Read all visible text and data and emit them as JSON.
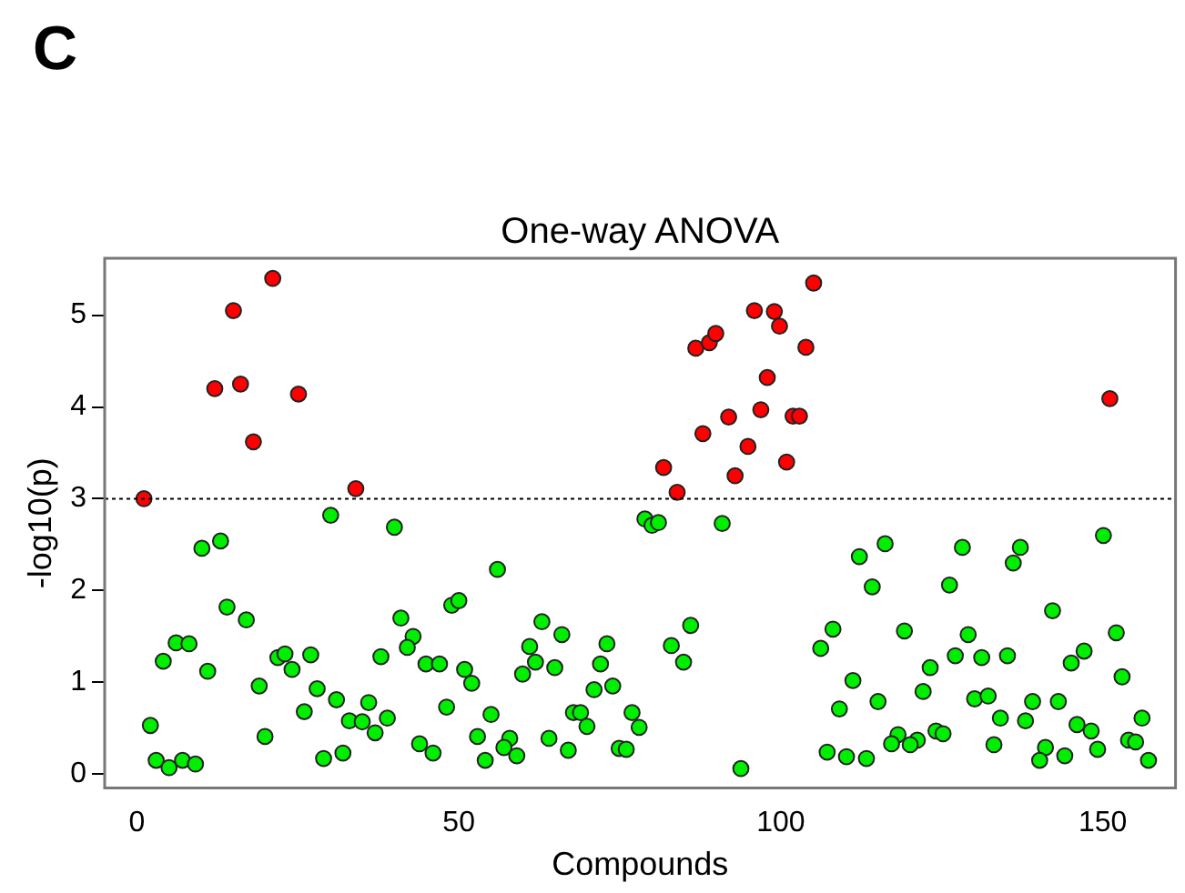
{
  "chart_data": {
    "type": "scatter",
    "title": "One-way ANOVA",
    "xlabel": "Compounds",
    "ylabel": "-log10(p)",
    "annotations": [
      "C"
    ],
    "xlim": [
      -5,
      161.3
    ],
    "xticks": [
      0,
      50,
      100,
      150
    ],
    "ylim": [
      -0.15,
      5.62
    ],
    "yticks": [
      0,
      1,
      2,
      3,
      4,
      5
    ],
    "grid": false,
    "legend": false,
    "marker": "circle",
    "ref_lines": [
      {
        "axis": "y",
        "value": 3,
        "line_style": "dotted",
        "color": "#000000"
      }
    ],
    "series": [
      {
        "color": "#ff0000",
        "x": [
          1.1,
          12.1,
          15.0,
          16.1,
          18.1,
          21.1,
          25.1,
          34.0,
          81.8,
          83.9,
          86.8,
          87.9,
          88.9,
          89.9,
          91.9,
          92.9,
          94.9,
          95.9,
          96.9,
          97.9,
          99.0,
          99.8,
          100.9,
          101.9,
          102.9,
          103.9,
          105.1,
          151.1
        ],
        "values": [
          3.0,
          4.2,
          5.05,
          4.25,
          3.62,
          5.4,
          4.14,
          3.11,
          3.34,
          3.07,
          4.64,
          3.71,
          4.7,
          4.8,
          3.89,
          3.25,
          3.57,
          5.05,
          3.97,
          4.32,
          5.04,
          4.88,
          3.4,
          3.9,
          3.9,
          4.65,
          5.35,
          4.09
        ]
      },
      {
        "color": "#00ee00",
        "x": [
          30.1,
          40.0,
          10.1,
          13.0,
          14.0,
          17.0,
          41.0,
          42.9,
          42.0,
          6.1,
          8.1,
          4.1,
          11.0,
          21.9,
          23.0,
          24.1,
          27.0,
          37.9,
          44.9,
          47.0,
          48.9,
          50.0,
          50.9,
          52.0,
          48.1,
          19.0,
          28.0,
          31.0,
          26.0,
          36.0,
          33.0,
          35.0,
          38.9,
          37.0,
          19.9,
          2.1,
          43.9,
          46.0,
          29.0,
          32.0,
          3.0,
          5.0,
          7.1,
          9.1,
          78.9,
          80.0,
          81.0,
          90.9,
          56.0,
          62.9,
          66.0,
          61.0,
          73.0,
          83.0,
          86.0,
          61.9,
          64.9,
          59.9,
          72.0,
          84.9,
          71.0,
          73.9,
          55.0,
          67.8,
          68.9,
          76.9,
          69.9,
          78.0,
          52.9,
          57.9,
          57.0,
          64.0,
          54.1,
          59.0,
          67.0,
          74.9,
          76.0,
          93.8,
          150.1,
          116.2,
          112.2,
          128.2,
          137.2,
          136.1,
          114.2,
          126.2,
          142.2,
          108.1,
          106.2,
          119.2,
          129.1,
          152.1,
          127.1,
          131.2,
          135.2,
          147.1,
          145.1,
          123.2,
          111.2,
          153.0,
          122.1,
          130.1,
          132.2,
          115.1,
          139.1,
          143.1,
          109.1,
          134.1,
          138.0,
          156.1,
          146.0,
          148.2,
          118.2,
          124.1,
          125.2,
          121.2,
          117.2,
          120.1,
          133.1,
          141.1,
          154.0,
          155.1,
          149.2,
          107.2,
          110.2,
          113.3,
          140.2,
          144.1,
          157.1
        ],
        "values": [
          2.82,
          2.69,
          2.46,
          2.54,
          1.82,
          1.68,
          1.7,
          1.5,
          1.38,
          1.43,
          1.42,
          1.23,
          1.12,
          1.27,
          1.31,
          1.14,
          1.3,
          1.28,
          1.2,
          1.2,
          1.84,
          1.89,
          1.14,
          0.99,
          0.73,
          0.96,
          0.93,
          0.81,
          0.68,
          0.78,
          0.58,
          0.57,
          0.61,
          0.45,
          0.41,
          0.53,
          0.33,
          0.23,
          0.17,
          0.23,
          0.15,
          0.07,
          0.15,
          0.11,
          2.78,
          2.71,
          2.74,
          2.73,
          2.23,
          1.66,
          1.52,
          1.39,
          1.42,
          1.4,
          1.62,
          1.22,
          1.16,
          1.09,
          1.2,
          1.22,
          0.92,
          0.96,
          0.65,
          0.67,
          0.67,
          0.67,
          0.52,
          0.51,
          0.41,
          0.39,
          0.29,
          0.39,
          0.15,
          0.2,
          0.26,
          0.28,
          0.27,
          0.06,
          2.6,
          2.51,
          2.37,
          2.47,
          2.47,
          2.3,
          2.04,
          2.06,
          1.78,
          1.58,
          1.37,
          1.56,
          1.52,
          1.54,
          1.29,
          1.27,
          1.29,
          1.34,
          1.21,
          1.16,
          1.02,
          1.06,
          0.9,
          0.82,
          0.85,
          0.79,
          0.79,
          0.79,
          0.71,
          0.61,
          0.58,
          0.61,
          0.54,
          0.47,
          0.43,
          0.47,
          0.44,
          0.37,
          0.33,
          0.32,
          0.32,
          0.29,
          0.37,
          0.35,
          0.27,
          0.24,
          0.19,
          0.17,
          0.15,
          0.2,
          0.15
        ]
      }
    ]
  }
}
